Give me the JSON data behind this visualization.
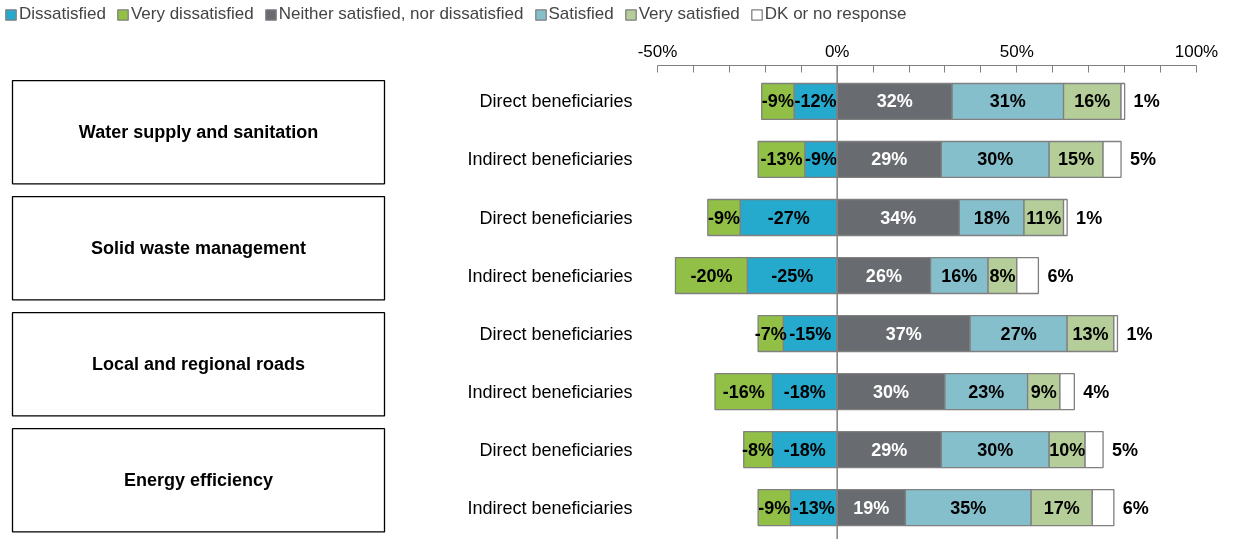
{
  "chart_data": {
    "type": "bar",
    "orientation": "horizontal",
    "stacked": true,
    "legend": "top",
    "grid": false,
    "categories": [
      "Direct beneficiaries",
      "Indirect beneficiaries",
      "Direct beneficiaries",
      "Indirect beneficiaries",
      "Direct beneficiaries",
      "Indirect beneficiaries",
      "Direct beneficiaries",
      "Indirect beneficiaries"
    ],
    "series": [
      {
        "name": "Dissatisfied",
        "color": "#25a9cc",
        "values": [
          -12,
          -9,
          -27,
          -25,
          -15,
          -18,
          -18,
          -13
        ],
        "value_labels": [
          "-12%",
          "-9%",
          "-27%",
          "-25%",
          "-15%",
          "-18%",
          "-18%",
          "-13%"
        ]
      },
      {
        "name": "Very dissatisfied",
        "color": "#92c047",
        "values": [
          -9,
          -13,
          -9,
          -20,
          -7,
          -16,
          -8,
          -9
        ],
        "value_labels": [
          "-9%",
          "-13%",
          "-9%",
          "-20%",
          "-7%",
          "-16%",
          "-8%",
          "-9%"
        ]
      },
      {
        "name": "Neither satisfied, nor dissatisfied",
        "color": "#686b70",
        "values": [
          32,
          29,
          34,
          26,
          37,
          30,
          29,
          19
        ],
        "value_labels": [
          "32%",
          "29%",
          "34%",
          "26%",
          "37%",
          "30%",
          "29%",
          "19%"
        ]
      },
      {
        "name": "Satisfied",
        "color": "#86bfcc",
        "values": [
          31,
          30,
          18,
          16,
          27,
          23,
          30,
          35
        ],
        "value_labels": [
          "31%",
          "30%",
          "18%",
          "16%",
          "27%",
          "23%",
          "30%",
          "35%"
        ]
      },
      {
        "name": "Very satisfied",
        "color": "#b5cd98",
        "values": [
          16,
          15,
          11,
          8,
          13,
          9,
          10,
          17
        ],
        "value_labels": [
          "16%",
          "15%",
          "11%",
          "8%",
          "13%",
          "9%",
          "10%",
          "17%"
        ]
      },
      {
        "name": "DK or no response",
        "color": "#ffffff",
        "values": [
          1,
          5,
          1,
          6,
          1,
          4,
          5,
          6
        ],
        "value_labels": [
          "1%",
          "5%",
          "1%",
          "6%",
          "1%",
          "4%",
          "5%",
          "6%"
        ]
      }
    ],
    "xlim": [
      -50,
      100
    ],
    "xticks": [
      {
        "value": -50,
        "label": "-50%"
      },
      {
        "value": -40,
        "label": null
      },
      {
        "value": -30,
        "label": null
      },
      {
        "value": -20,
        "label": null
      },
      {
        "value": -10,
        "label": null
      },
      {
        "value": 0,
        "label": "0%"
      },
      {
        "value": 10,
        "label": null
      },
      {
        "value": 20,
        "label": null
      },
      {
        "value": 30,
        "label": null
      },
      {
        "value": 40,
        "label": null
      },
      {
        "value": 50,
        "label": "50%"
      },
      {
        "value": 60,
        "label": null
      },
      {
        "value": 70,
        "label": null
      },
      {
        "value": 80,
        "label": null
      },
      {
        "value": 90,
        "label": null
      },
      {
        "value": 100,
        "label": "100%"
      }
    ],
    "ref_lines": [
      {
        "axis": "x",
        "value": 0,
        "color": "#808080"
      }
    ],
    "annotations": [
      "Water supply and sanitation",
      "Solid waste management",
      "Local and regional roads",
      "Energy efficiency"
    ]
  }
}
